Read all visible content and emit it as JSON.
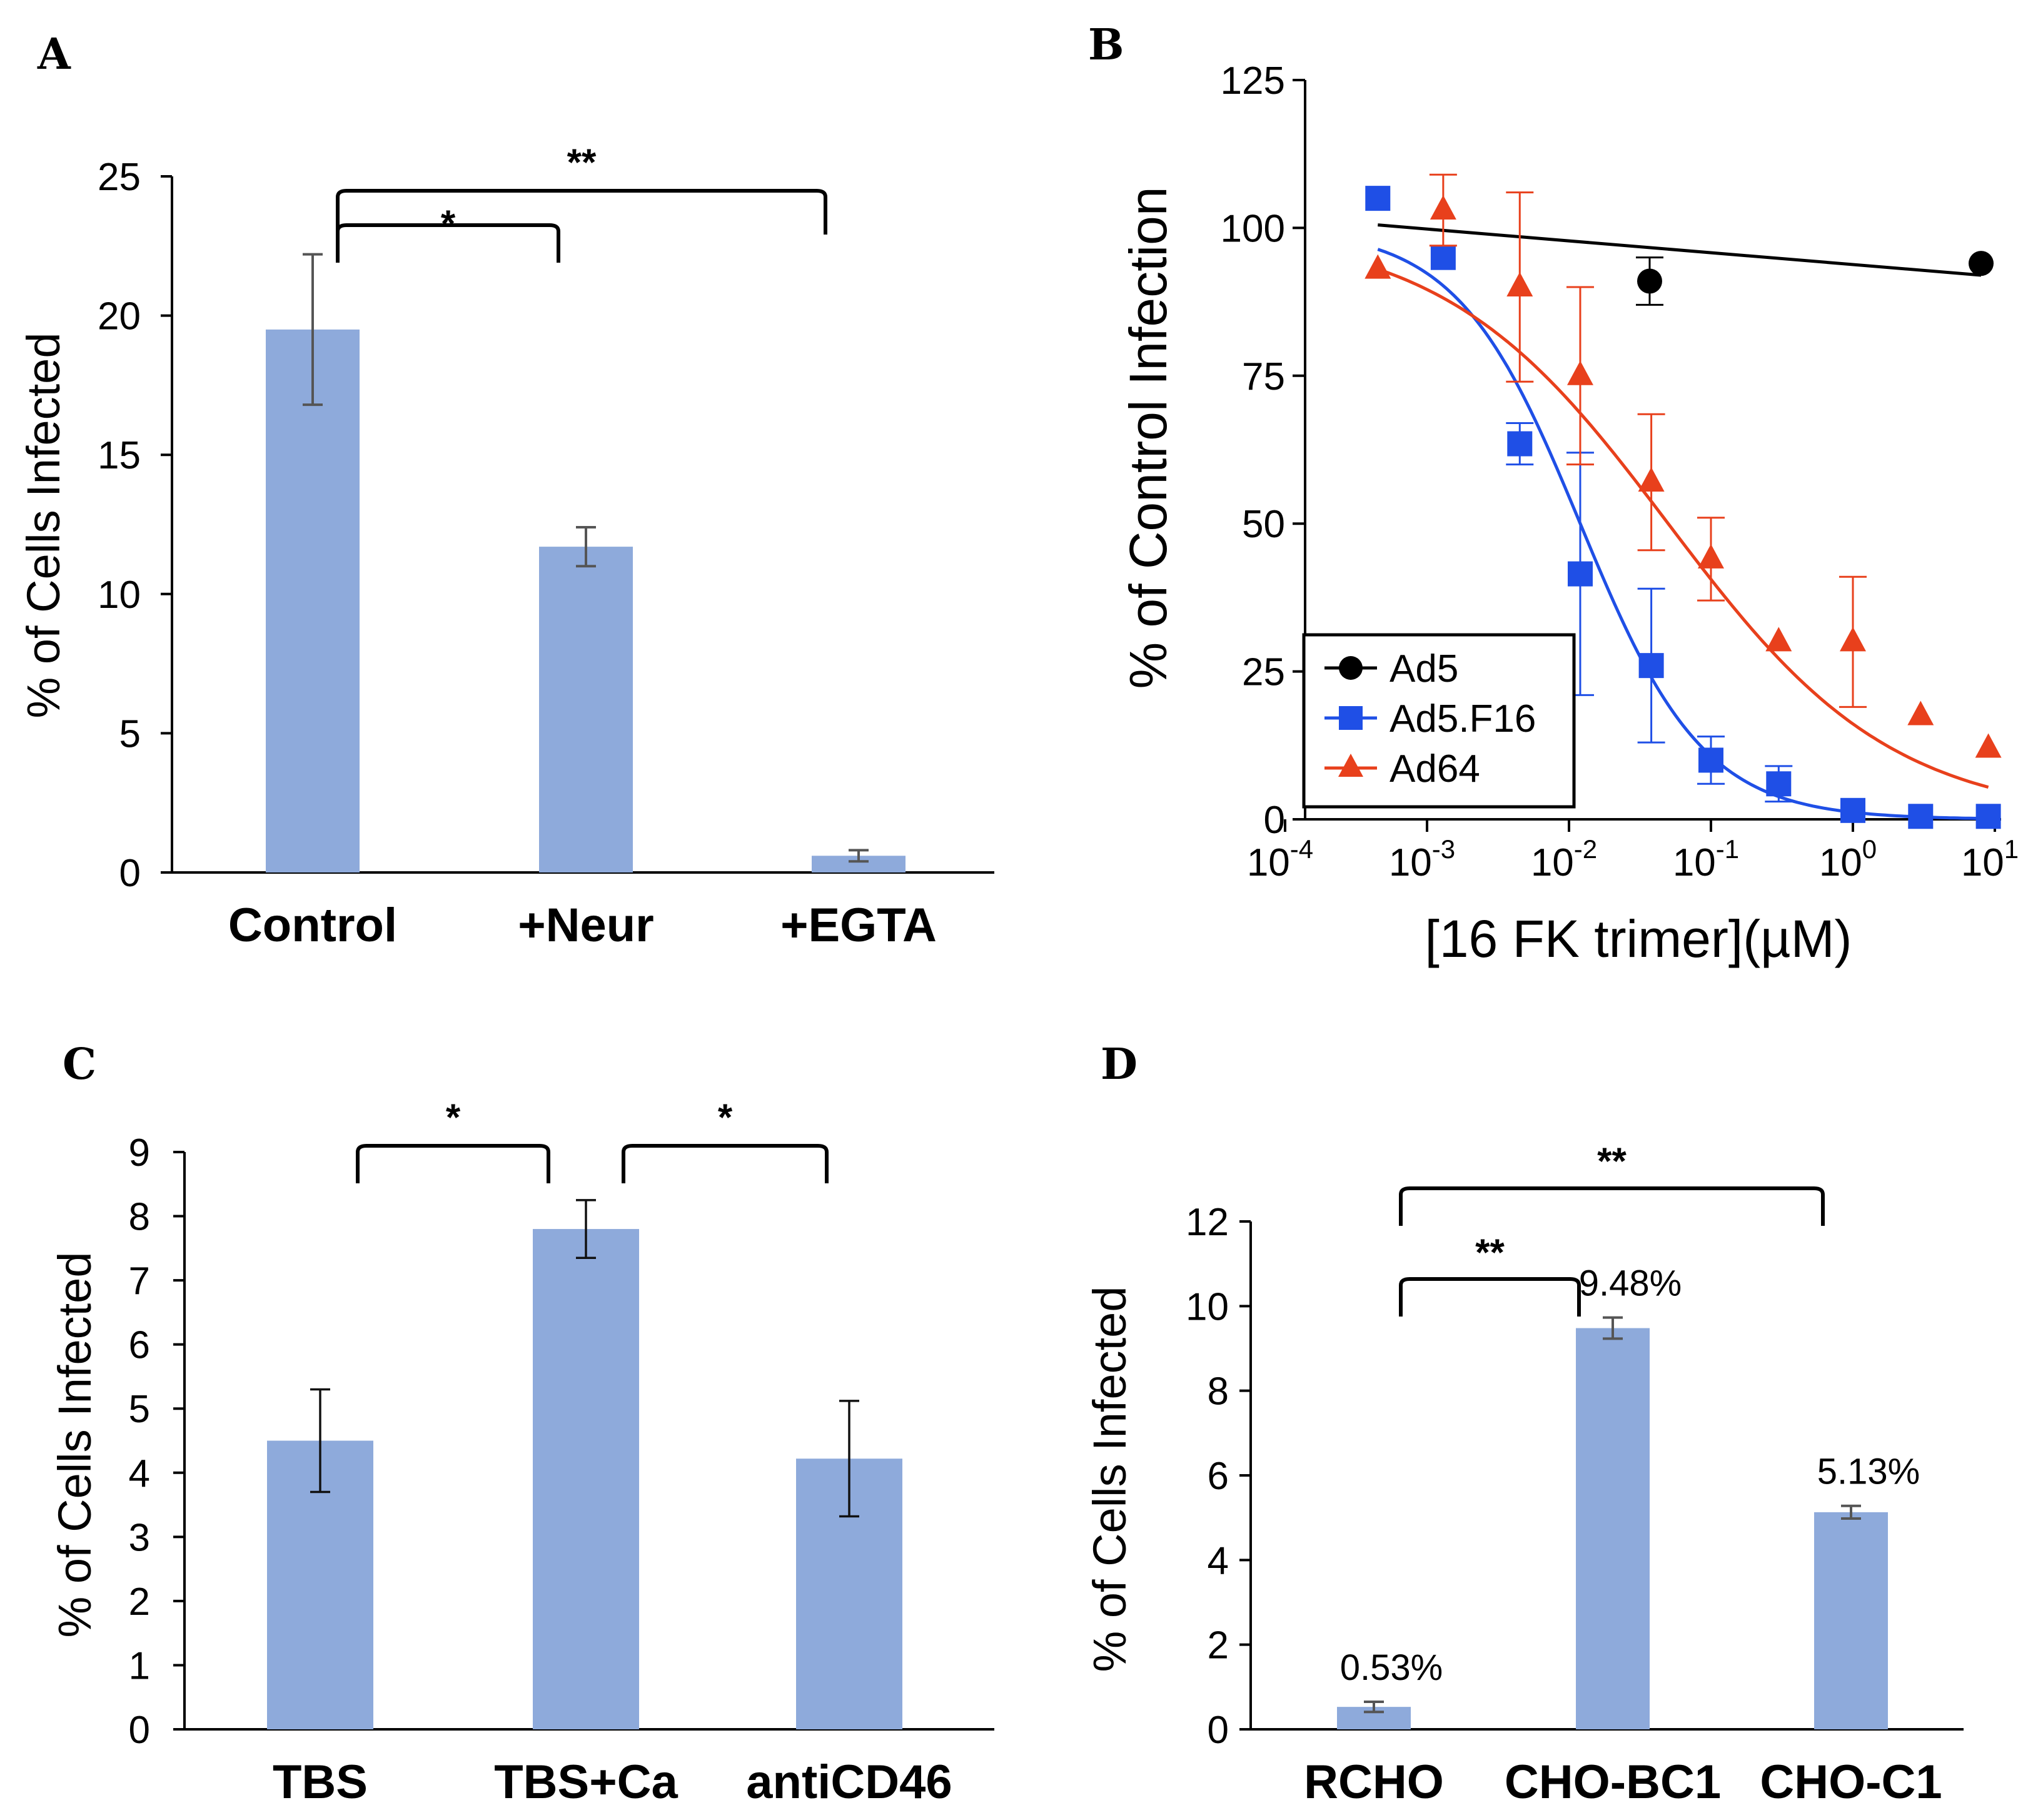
{
  "chart_data": [
    {
      "panel": "A",
      "type": "bar",
      "ylabel": "% of Cells Infected",
      "yticks": [
        "0",
        "5",
        "10",
        "15",
        "20",
        "25"
      ],
      "ylim": [
        0,
        25
      ],
      "categories": [
        "Control",
        "+Neur",
        "+EGTA"
      ],
      "values": [
        19.5,
        11.7,
        0.6
      ],
      "errors": [
        2.7,
        0.7,
        0.2
      ],
      "significance": [
        {
          "from": 0,
          "to": 1,
          "label": "*"
        },
        {
          "from": 0,
          "to": 2,
          "label": "**"
        }
      ]
    },
    {
      "panel": "B",
      "type": "scatter",
      "xscale": "log",
      "xlabel": "[16 FK trimer](µM)",
      "ylabel": "% of Control Infection",
      "ylim": [
        0,
        125
      ],
      "yticks": [
        "0",
        "25",
        "50",
        "75",
        "100",
        "125"
      ],
      "xticks": [
        {
          "base": "10",
          "exp": "-4"
        },
        {
          "base": "10",
          "exp": "-3"
        },
        {
          "base": "10",
          "exp": "-2"
        },
        {
          "base": "10",
          "exp": "-1"
        },
        {
          "base": "10",
          "exp": "0"
        },
        {
          "base": "10",
          "exp": "1"
        }
      ],
      "legend_position": "bottom-left",
      "series": [
        {
          "name": "Ad5",
          "color": "#000000",
          "marker": "circle",
          "x": [
            0.037,
            8.0
          ],
          "y": [
            91,
            94
          ],
          "err": [
            4,
            0
          ],
          "fit": {
            "type": "linear",
            "y_start": 100.5,
            "y_end": 92
          }
        },
        {
          "name": "Ad5.F16",
          "color": "#1f4fe6",
          "marker": "square",
          "x": [
            0.00045,
            0.0013,
            0.0045,
            0.012,
            0.038,
            0.1,
            0.3,
            1.0,
            3.0,
            9.0
          ],
          "y": [
            105,
            95,
            63.5,
            41.5,
            26,
            10,
            6,
            1.5,
            0.5,
            0.5
          ],
          "err": [
            0,
            0,
            3.5,
            20.5,
            13,
            4,
            3,
            0,
            0,
            0
          ],
          "fit": {
            "type": "sigmoid",
            "top": 100,
            "ic50": 0.012,
            "hill": 1.0
          }
        },
        {
          "name": "Ad64",
          "color": "#e8401c",
          "marker": "triangle",
          "x": [
            0.00045,
            0.0013,
            0.0045,
            0.012,
            0.038,
            0.1,
            0.3,
            1.0,
            3.0,
            9.0
          ],
          "y": [
            93,
            103,
            90,
            75,
            57,
            44,
            30,
            30,
            17.5,
            12
          ],
          "err": [
            0,
            6,
            16,
            15,
            11.5,
            7,
            0,
            11,
            0,
            0
          ],
          "fit": {
            "type": "sigmoid",
            "top": 100,
            "ic50": 0.05,
            "hill": 0.55
          }
        }
      ]
    },
    {
      "panel": "C",
      "type": "bar",
      "ylabel": "% of Cells Infected",
      "yticks": [
        "0",
        "1",
        "2",
        "3",
        "4",
        "5",
        "6",
        "7",
        "8",
        "9"
      ],
      "ylim": [
        0,
        9
      ],
      "categories": [
        "TBS",
        "TBS+Ca",
        "antiCD46"
      ],
      "values": [
        4.5,
        7.8,
        4.22
      ],
      "errors": [
        0.8,
        0.45,
        0.9
      ],
      "significance": [
        {
          "from": 0,
          "to": 1,
          "label": "*"
        },
        {
          "from": 1,
          "to": 2,
          "label": "*"
        }
      ]
    },
    {
      "panel": "D",
      "type": "bar",
      "ylabel": "% of Cells Infected",
      "yticks": [
        "0",
        "2",
        "4",
        "6",
        "8",
        "10",
        "12"
      ],
      "ylim": [
        0,
        12
      ],
      "categories": [
        "RCHO",
        "CHO-BC1",
        "CHO-C1"
      ],
      "values": [
        0.53,
        9.48,
        5.13
      ],
      "errors": [
        0.12,
        0.25,
        0.15
      ],
      "data_labels": [
        "0.53%",
        "9.48%",
        "5.13%"
      ],
      "significance": [
        {
          "from": 0,
          "to": 1,
          "label": "**"
        },
        {
          "from": 0,
          "to": 2,
          "label": "**"
        }
      ]
    }
  ]
}
